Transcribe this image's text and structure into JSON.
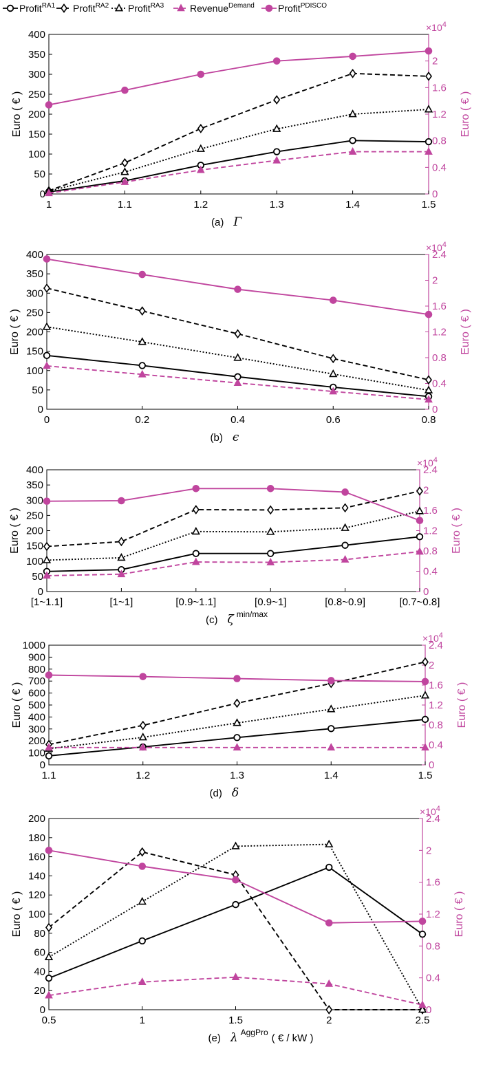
{
  "legend": [
    {
      "base": "Profit",
      "sup": "RA1",
      "series": "Profit RA1"
    },
    {
      "base": "Profit",
      "sup": "RA2",
      "series": "Profit RA2"
    },
    {
      "base": "Profit",
      "sup": "RA3",
      "series": "Profit RA3"
    },
    {
      "base": "Revenue",
      "sup": "Demand",
      "series": "Revenue Demand"
    },
    {
      "base": "Profit",
      "sup": "PDISCO",
      "series": "Profit PDISCO"
    }
  ],
  "styles": {
    "black": "#000000",
    "magenta": "#C0459E"
  },
  "chart_data": [
    {
      "type": "line",
      "panel": "a",
      "caption": "(a)",
      "caption_symbol": "Γ",
      "caption_sup": "",
      "caption_tail": "",
      "ylabel_left": "Euro ( € )",
      "ylabel_right": "Euro ( € )",
      "right_multiplier_base": "×10",
      "right_multiplier_exp": "4",
      "x_kind": "numeric",
      "x": [
        1,
        1.1,
        1.2,
        1.3,
        1.4,
        1.5
      ],
      "xticks": [
        1,
        1.1,
        1.2,
        1.3,
        1.4,
        1.5
      ],
      "xtick_labels": [
        "1",
        "1.1",
        "1.2",
        "1.3",
        "1.4",
        "1.5"
      ],
      "xlim": [
        1,
        1.5
      ],
      "ylim_left": [
        0,
        400
      ],
      "yticks_left": [
        0,
        50,
        100,
        150,
        200,
        250,
        300,
        350,
        400
      ],
      "ytick_labels_left": [
        "0",
        "50",
        "100",
        "150",
        "200",
        "250",
        "300",
        "350",
        "400"
      ],
      "ylim_right": [
        0,
        2.4
      ],
      "yticks_right": [
        0,
        0.4,
        0.8,
        1.2,
        1.6,
        2
      ],
      "ytick_labels_right": [
        "0",
        "0.4",
        "0.8",
        "1.2",
        "1.6",
        "2"
      ],
      "series": [
        {
          "name": "Profit RA1",
          "axis": "left",
          "values": [
            5,
            33,
            72,
            106,
            134,
            131
          ]
        },
        {
          "name": "Profit RA2",
          "axis": "left",
          "values": [
            8,
            78,
            164,
            236,
            302,
            295
          ]
        },
        {
          "name": "Profit RA3",
          "axis": "left",
          "values": [
            7,
            55,
            113,
            163,
            200,
            212
          ]
        },
        {
          "name": "Revenue Demand",
          "axis": "left",
          "values": [
            2,
            30,
            60,
            84,
            106,
            106
          ]
        },
        {
          "name": "Profit PDISCO",
          "axis": "right",
          "values": [
            1.34,
            1.56,
            1.8,
            2.0,
            2.07,
            2.15
          ]
        }
      ]
    },
    {
      "type": "line",
      "panel": "b",
      "caption": "(b)",
      "caption_symbol": "ϵ",
      "caption_sup": "",
      "caption_tail": "",
      "ylabel_left": "Euro ( € )",
      "ylabel_right": "Euro ( € )",
      "right_multiplier_base": "×10",
      "right_multiplier_exp": "4",
      "x_kind": "numeric",
      "x": [
        0,
        0.2,
        0.4,
        0.6,
        0.8
      ],
      "xticks": [
        0,
        0.2,
        0.4,
        0.6,
        0.8
      ],
      "xtick_labels": [
        "0",
        "0.2",
        "0.4",
        "0.6",
        "0.8"
      ],
      "xlim": [
        0,
        0.8
      ],
      "ylim_left": [
        0,
        400
      ],
      "yticks_left": [
        0,
        50,
        100,
        150,
        200,
        250,
        300,
        350,
        400
      ],
      "ytick_labels_left": [
        "0",
        "50",
        "100",
        "150",
        "200",
        "250",
        "300",
        "350",
        "400"
      ],
      "ylim_right": [
        0,
        2.4
      ],
      "yticks_right": [
        0,
        0.4,
        0.8,
        1.2,
        1.6,
        2,
        2.4
      ],
      "ytick_labels_right": [
        "0",
        "0.4",
        "0.8",
        "1.2",
        "1.6",
        "2",
        "2.4"
      ],
      "series": [
        {
          "name": "Profit RA1",
          "axis": "left",
          "values": [
            139,
            113,
            84,
            57,
            33
          ]
        },
        {
          "name": "Profit RA2",
          "axis": "left",
          "values": [
            313,
            254,
            195,
            131,
            76
          ]
        },
        {
          "name": "Profit RA3",
          "axis": "left",
          "values": [
            213,
            174,
            133,
            91,
            49
          ]
        },
        {
          "name": "Revenue Demand",
          "axis": "left",
          "values": [
            112,
            90,
            68,
            46,
            25
          ]
        },
        {
          "name": "Profit PDISCO",
          "axis": "right",
          "values": [
            2.33,
            2.09,
            1.86,
            1.69,
            1.47
          ]
        }
      ]
    },
    {
      "type": "line",
      "panel": "c",
      "caption": "(c)",
      "caption_symbol": "ζ",
      "caption_sup": "min/max",
      "caption_tail": "",
      "ylabel_left": "Euro ( € )",
      "ylabel_right": "Euro ( € )",
      "right_multiplier_base": "×10",
      "right_multiplier_exp": "4",
      "x_kind": "categorical",
      "x": [
        0,
        1,
        2,
        3,
        4,
        5
      ],
      "xticks": [
        0,
        1,
        2,
        3,
        4,
        5
      ],
      "xtick_labels": [
        "[1~1.1]",
        "[1~1]",
        "[0.9~1.1]",
        "[0.9~1]",
        "[0.8~0.9]",
        "[0.7~0.8]"
      ],
      "xlim": [
        0,
        5
      ],
      "ylim_left": [
        0,
        400
      ],
      "yticks_left": [
        0,
        50,
        100,
        150,
        200,
        250,
        300,
        350,
        400
      ],
      "ytick_labels_left": [
        "0",
        "50",
        "100",
        "150",
        "200",
        "250",
        "300",
        "350",
        "400"
      ],
      "ylim_right": [
        0,
        2.4
      ],
      "yticks_right": [
        0,
        0.4,
        0.8,
        1.2,
        1.6,
        2,
        2.4
      ],
      "ytick_labels_right": [
        "0",
        "0.4",
        "0.8",
        "1.2",
        "1.6",
        "2",
        "2.4"
      ],
      "series": [
        {
          "name": "Profit RA1",
          "axis": "left",
          "values": [
            66,
            72,
            125,
            125,
            152,
            180
          ]
        },
        {
          "name": "Profit RA2",
          "axis": "left",
          "values": [
            148,
            164,
            269,
            268,
            275,
            330
          ]
        },
        {
          "name": "Profit RA3",
          "axis": "left",
          "values": [
            103,
            111,
            197,
            196,
            209,
            264
          ]
        },
        {
          "name": "Revenue Demand",
          "axis": "left",
          "values": [
            52,
            57,
            97,
            96,
            105,
            131
          ]
        },
        {
          "name": "Profit PDISCO",
          "axis": "right",
          "values": [
            1.78,
            1.79,
            2.03,
            2.03,
            1.96,
            1.4
          ]
        }
      ]
    },
    {
      "type": "line",
      "panel": "d",
      "caption": "(d)",
      "caption_symbol": "δ",
      "caption_sup": "",
      "caption_tail": "",
      "ylabel_left": "Euro ( € )",
      "ylabel_right": "Euro ( € )",
      "right_multiplier_base": "×10",
      "right_multiplier_exp": "4",
      "x_kind": "numeric",
      "x": [
        1.1,
        1.2,
        1.3,
        1.4,
        1.5
      ],
      "xticks": [
        1.1,
        1.2,
        1.3,
        1.4,
        1.5
      ],
      "xtick_labels": [
        "1.1",
        "1.2",
        "1.3",
        "1.4",
        "1.5"
      ],
      "xlim": [
        1.1,
        1.5
      ],
      "ylim_left": [
        0,
        1000
      ],
      "yticks_left": [
        0,
        100,
        200,
        300,
        400,
        500,
        600,
        700,
        800,
        900,
        1000
      ],
      "ytick_labels_left": [
        "0",
        "100",
        "200",
        "300",
        "400",
        "500",
        "600",
        "700",
        "800",
        "900",
        "1000"
      ],
      "ylim_right": [
        0,
        2.4
      ],
      "yticks_right": [
        0,
        0.4,
        0.8,
        1.2,
        1.6,
        2,
        2.4
      ],
      "ytick_labels_right": [
        "0",
        "0.4",
        "0.8",
        "1.2",
        "1.6",
        "2",
        "2.4"
      ],
      "series": [
        {
          "name": "Profit RA1",
          "axis": "left",
          "values": [
            75,
            150,
            228,
            303,
            380
          ]
        },
        {
          "name": "Profit RA2",
          "axis": "left",
          "values": [
            170,
            330,
            515,
            680,
            860
          ]
        },
        {
          "name": "Profit RA3",
          "axis": "left",
          "values": [
            135,
            230,
            350,
            465,
            580
          ]
        },
        {
          "name": "Revenue Demand",
          "axis": "left",
          "values": [
            145,
            145,
            145,
            145,
            145
          ]
        },
        {
          "name": "Profit PDISCO",
          "axis": "right",
          "values": [
            1.8,
            1.77,
            1.73,
            1.69,
            1.67
          ]
        }
      ]
    },
    {
      "type": "line",
      "panel": "e",
      "caption": "(e)",
      "caption_symbol": "λ",
      "caption_sup": "AggPro",
      "caption_tail": "( € / kW )",
      "ylabel_left": "Euro ( € )",
      "ylabel_right": "Euro ( € )",
      "right_multiplier_base": "×10",
      "right_multiplier_exp": "4",
      "x_kind": "numeric",
      "x": [
        0.5,
        1,
        1.5,
        2,
        2.5
      ],
      "xticks": [
        0.5,
        1,
        1.5,
        2,
        2.5
      ],
      "xtick_labels": [
        "0.5",
        "1",
        "1.5",
        "2",
        "2.5"
      ],
      "xlim": [
        0.5,
        2.5
      ],
      "ylim_left": [
        0,
        200
      ],
      "yticks_left": [
        0,
        20,
        40,
        60,
        80,
        100,
        120,
        140,
        160,
        180,
        200
      ],
      "ytick_labels_left": [
        "0",
        "20",
        "40",
        "60",
        "80",
        "100",
        "120",
        "140",
        "160",
        "180",
        "200"
      ],
      "ylim_right": [
        0,
        2.4
      ],
      "yticks_right": [
        0,
        0.4,
        0.8,
        1.2,
        1.6,
        2,
        2.4
      ],
      "ytick_labels_right": [
        "0",
        "0.4",
        "0.8",
        "1.2",
        "1.6",
        "2",
        "2.4"
      ],
      "series": [
        {
          "name": "Profit RA1",
          "axis": "left",
          "values": [
            33,
            72,
            110,
            149,
            79
          ]
        },
        {
          "name": "Profit RA2",
          "axis": "left",
          "values": [
            86,
            165,
            141,
            0,
            0
          ]
        },
        {
          "name": "Profit RA3",
          "axis": "left",
          "values": [
            55,
            113,
            171,
            173,
            0
          ]
        },
        {
          "name": "Revenue Demand",
          "axis": "left",
          "values": [
            15,
            29,
            34,
            27,
            5
          ]
        },
        {
          "name": "Profit PDISCO",
          "axis": "right",
          "values": [
            2.0,
            1.8,
            1.63,
            1.09,
            1.11
          ]
        }
      ]
    }
  ]
}
